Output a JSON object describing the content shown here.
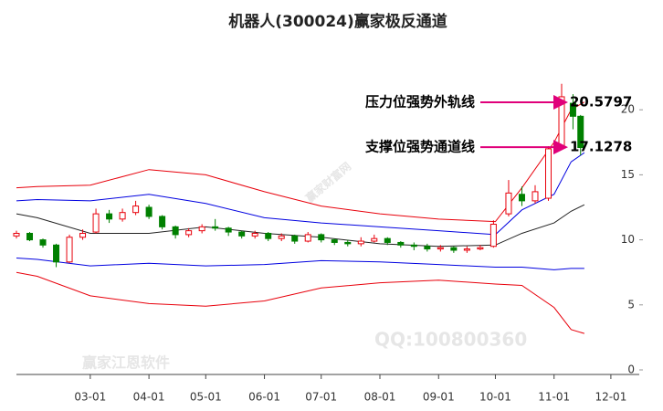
{
  "chart_data": {
    "type": "candlestick",
    "title": "机器人(300024)赢家极反通道",
    "xlim": [
      "01-21",
      "12-16"
    ],
    "ylim": [
      0,
      25
    ],
    "yticks": [
      0,
      5,
      10,
      15,
      20
    ],
    "xticks": [
      "03-01",
      "04-01",
      "05-01",
      "06-01",
      "07-01",
      "08-01",
      "09-01",
      "10-01",
      "11-01",
      "12-01"
    ],
    "up_color": "#e8000b",
    "down_color": "#008000",
    "candles": {
      "x": [
        "01-21",
        "01-28",
        "02-04",
        "02-11",
        "02-18",
        "02-25",
        "03-04",
        "03-11",
        "03-18",
        "03-25",
        "04-01",
        "04-08",
        "04-15",
        "04-22",
        "04-29",
        "05-06",
        "05-13",
        "05-20",
        "05-27",
        "06-03",
        "06-10",
        "06-17",
        "06-24",
        "07-01",
        "07-08",
        "07-15",
        "07-22",
        "07-29",
        "08-05",
        "08-12",
        "08-19",
        "08-26",
        "09-02",
        "09-09",
        "09-16",
        "09-23",
        "09-30",
        "10-08",
        "10-15",
        "10-22",
        "10-29",
        "11-05",
        "11-11",
        "11-15"
      ],
      "open": [
        10.3,
        10.5,
        10.0,
        9.6,
        8.3,
        10.2,
        10.6,
        12.0,
        11.6,
        12.1,
        12.5,
        11.8,
        11.0,
        10.4,
        10.7,
        11.0,
        10.9,
        10.6,
        10.3,
        10.5,
        10.1,
        10.3,
        9.9,
        10.4,
        10.0,
        9.8,
        9.7,
        9.9,
        10.1,
        9.8,
        9.6,
        9.5,
        9.3,
        9.4,
        9.2,
        9.3,
        9.5,
        12.0,
        13.5,
        13.0,
        13.2,
        17.2,
        20.5,
        19.5
      ],
      "high": [
        10.7,
        10.6,
        10.1,
        9.7,
        10.4,
        10.8,
        12.4,
        12.3,
        12.4,
        13.0,
        12.7,
        11.9,
        11.1,
        10.9,
        11.2,
        11.6,
        11.0,
        10.7,
        10.7,
        10.6,
        10.5,
        10.4,
        10.6,
        10.5,
        10.1,
        10.0,
        10.2,
        10.4,
        10.2,
        9.9,
        9.8,
        9.7,
        9.6,
        9.5,
        9.5,
        9.6,
        11.5,
        14.6,
        14.1,
        14.2,
        17.2,
        22.0,
        21.2,
        19.6
      ],
      "low": [
        10.1,
        9.9,
        9.4,
        7.9,
        8.2,
        10.0,
        10.5,
        11.3,
        11.4,
        11.9,
        11.6,
        10.8,
        10.1,
        10.2,
        10.5,
        10.7,
        10.3,
        10.1,
        10.1,
        9.9,
        9.9,
        9.7,
        9.8,
        9.8,
        9.6,
        9.5,
        9.5,
        9.8,
        9.6,
        9.4,
        9.2,
        9.1,
        9.1,
        9.0,
        9.0,
        9.2,
        9.4,
        11.8,
        12.6,
        12.8,
        13.0,
        17.0,
        18.5,
        16.5
      ],
      "close": [
        10.5,
        10.0,
        9.6,
        8.3,
        10.2,
        10.5,
        12.0,
        11.6,
        12.1,
        12.6,
        11.8,
        11.0,
        10.4,
        10.7,
        11.0,
        10.9,
        10.6,
        10.3,
        10.5,
        10.1,
        10.3,
        9.9,
        10.4,
        10.0,
        9.8,
        9.7,
        9.9,
        10.1,
        9.8,
        9.6,
        9.5,
        9.3,
        9.4,
        9.2,
        9.3,
        9.4,
        11.2,
        13.6,
        13.0,
        13.7,
        17.0,
        21.0,
        19.5,
        17.1
      ]
    },
    "band_x": [
      "01-21",
      "02-01",
      "03-01",
      "04-01",
      "05-01",
      "06-01",
      "07-01",
      "08-01",
      "09-01",
      "10-01",
      "10-15",
      "11-01",
      "11-10",
      "11-17"
    ],
    "bands": [
      {
        "color": "#e8000b",
        "values": [
          14.0,
          14.1,
          14.2,
          15.4,
          15.0,
          13.7,
          12.6,
          12.0,
          11.6,
          11.4,
          14.0,
          17.5,
          20.0,
          20.6
        ]
      },
      {
        "color": "#0000e0",
        "values": [
          13.0,
          13.1,
          13.0,
          13.5,
          12.8,
          11.7,
          11.3,
          11.0,
          10.7,
          10.4,
          12.3,
          13.5,
          16.0,
          16.7
        ]
      },
      {
        "color": "#222222",
        "values": [
          12.0,
          11.7,
          10.5,
          10.5,
          11.0,
          10.5,
          10.2,
          9.7,
          9.5,
          9.6,
          10.5,
          11.3,
          12.2,
          12.7
        ]
      },
      {
        "color": "#0000e0",
        "values": [
          8.6,
          8.5,
          8.0,
          8.2,
          8.0,
          8.1,
          8.4,
          8.3,
          8.1,
          7.9,
          7.9,
          7.7,
          7.8,
          7.8
        ]
      },
      {
        "color": "#e8000b",
        "values": [
          7.5,
          7.2,
          5.7,
          5.1,
          4.9,
          5.3,
          6.3,
          6.7,
          6.9,
          6.6,
          6.5,
          4.8,
          3.1,
          2.8
        ]
      }
    ],
    "annotations": [
      {
        "text": "压力位强势外轨线",
        "value": 20.5797
      },
      {
        "text": "支撑位强势通道线",
        "value": 17.1278
      }
    ],
    "watermarks": [
      "赢家财富网",
      "赢家江恩软件",
      "QQ:100800360"
    ]
  }
}
